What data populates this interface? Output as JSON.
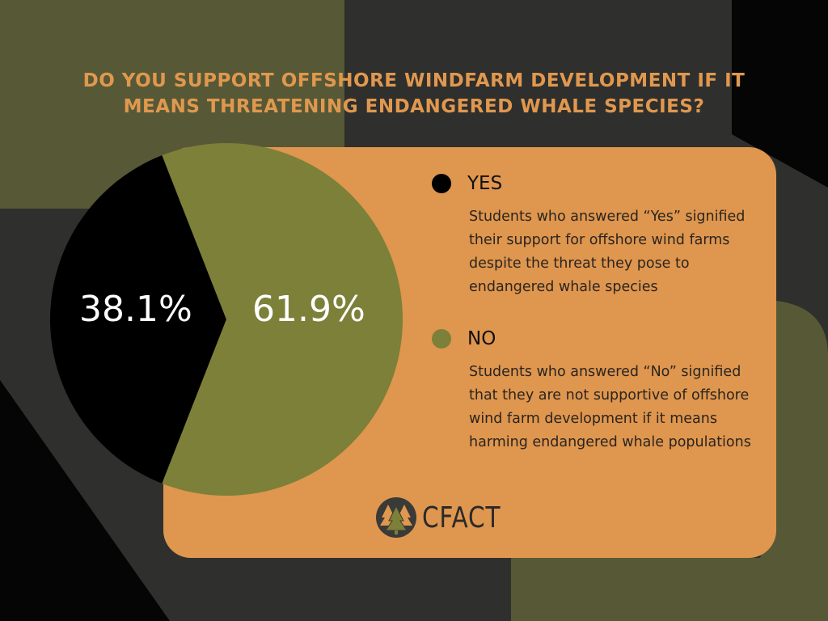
{
  "title": {
    "line1": "DO YOU SUPPORT OFFSHORE WINDFARM DEVELOPMENT IF IT",
    "line2": "MEANS THREATENING ENDANGERED WHALE SPECIES?"
  },
  "colors": {
    "background": "#2f2f2d",
    "olive_dark": "#575936",
    "card": "#df964e",
    "title": "#e0984e",
    "yes": "#000000",
    "no": "#7c8039"
  },
  "chart_data": {
    "type": "pie",
    "title": "DO YOU SUPPORT OFFSHORE WINDFARM DEVELOPMENT IF IT MEANS THREATENING ENDANGERED WHALE SPECIES?",
    "slices": [
      {
        "name": "YES",
        "value": 38.1,
        "label": "38.1%",
        "color": "#000000"
      },
      {
        "name": "NO",
        "value": 61.9,
        "label": "61.9%",
        "color": "#7c8039"
      }
    ]
  },
  "legend": [
    {
      "name": "YES",
      "description": "Students who answered “Yes” signified their support for offshore wind farms despite the threat they pose to endangered whale species"
    },
    {
      "name": "NO",
      "description": "Students who answered “No” signified that they are not supportive of offshore wind farm development if it means harming endangered whale populations"
    }
  ],
  "logo": {
    "text": "CFACT",
    "icon": "pine-trees-icon"
  }
}
